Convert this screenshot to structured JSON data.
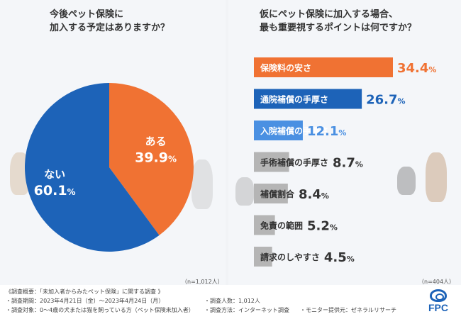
{
  "colors": {
    "orange": "#f07233",
    "blue": "#1d63b8",
    "light_blue": "#4a90e2",
    "gray": "#b5b5b5",
    "dark_text": "#333333"
  },
  "left": {
    "title_line1": "今後ペット保険に",
    "title_line2": "加入する予定はありますか？",
    "sample": "（n=1,012人）"
  },
  "right": {
    "title_line1": "仮にペット保険に加入する場合、",
    "title_line2": "最も重要視するポイントは何ですか？",
    "sample": "（n=404人）"
  },
  "chart_data": [
    {
      "type": "pie",
      "title": "今後ペット保険に加入する予定はありますか？",
      "labels": [
        "ある",
        "ない"
      ],
      "values": [
        39.9,
        60.1
      ],
      "value_labels": [
        "39.9%",
        "60.1%"
      ],
      "colors": [
        "#f07233",
        "#1d63b8"
      ]
    },
    {
      "type": "bar",
      "orientation": "horizontal",
      "title": "仮にペット保険に加入する場合、最も重要視するポイントは何ですか？",
      "categories": [
        "保険料の安さ",
        "通院補償の手厚さ",
        "入院補償の手厚さ",
        "手術補償の手厚さ",
        "補償割合",
        "免責の範囲",
        "請求のしやすさ"
      ],
      "values": [
        34.4,
        26.7,
        12.1,
        8.7,
        8.4,
        5.2,
        4.5
      ],
      "value_labels": [
        "34.4%",
        "26.7%",
        "12.1%",
        "8.7%",
        "8.4%",
        "5.2%",
        "4.5%"
      ],
      "colors": [
        "#f07233",
        "#1d63b8",
        "#4a90e2",
        "#b5b5b5",
        "#b5b5b5",
        "#b5b5b5",
        "#b5b5b5"
      ],
      "xlim": [
        0,
        34.4
      ]
    }
  ],
  "footer": {
    "line1": "《調査概要：「未加入者からみたペット保険」に関する調査 》",
    "period": "・調査期間：2023年4月21日（金）～2023年4月24日（月）",
    "count": "・調査人数：1,012人",
    "target": "・調査対象：0～4歳の犬または猫を飼っている方（ペット保険未加入者）",
    "method": "・調査方法：インターネット調査",
    "provider": "・モニター提供元：ゼネラルリサーチ",
    "logo": "FPC"
  }
}
